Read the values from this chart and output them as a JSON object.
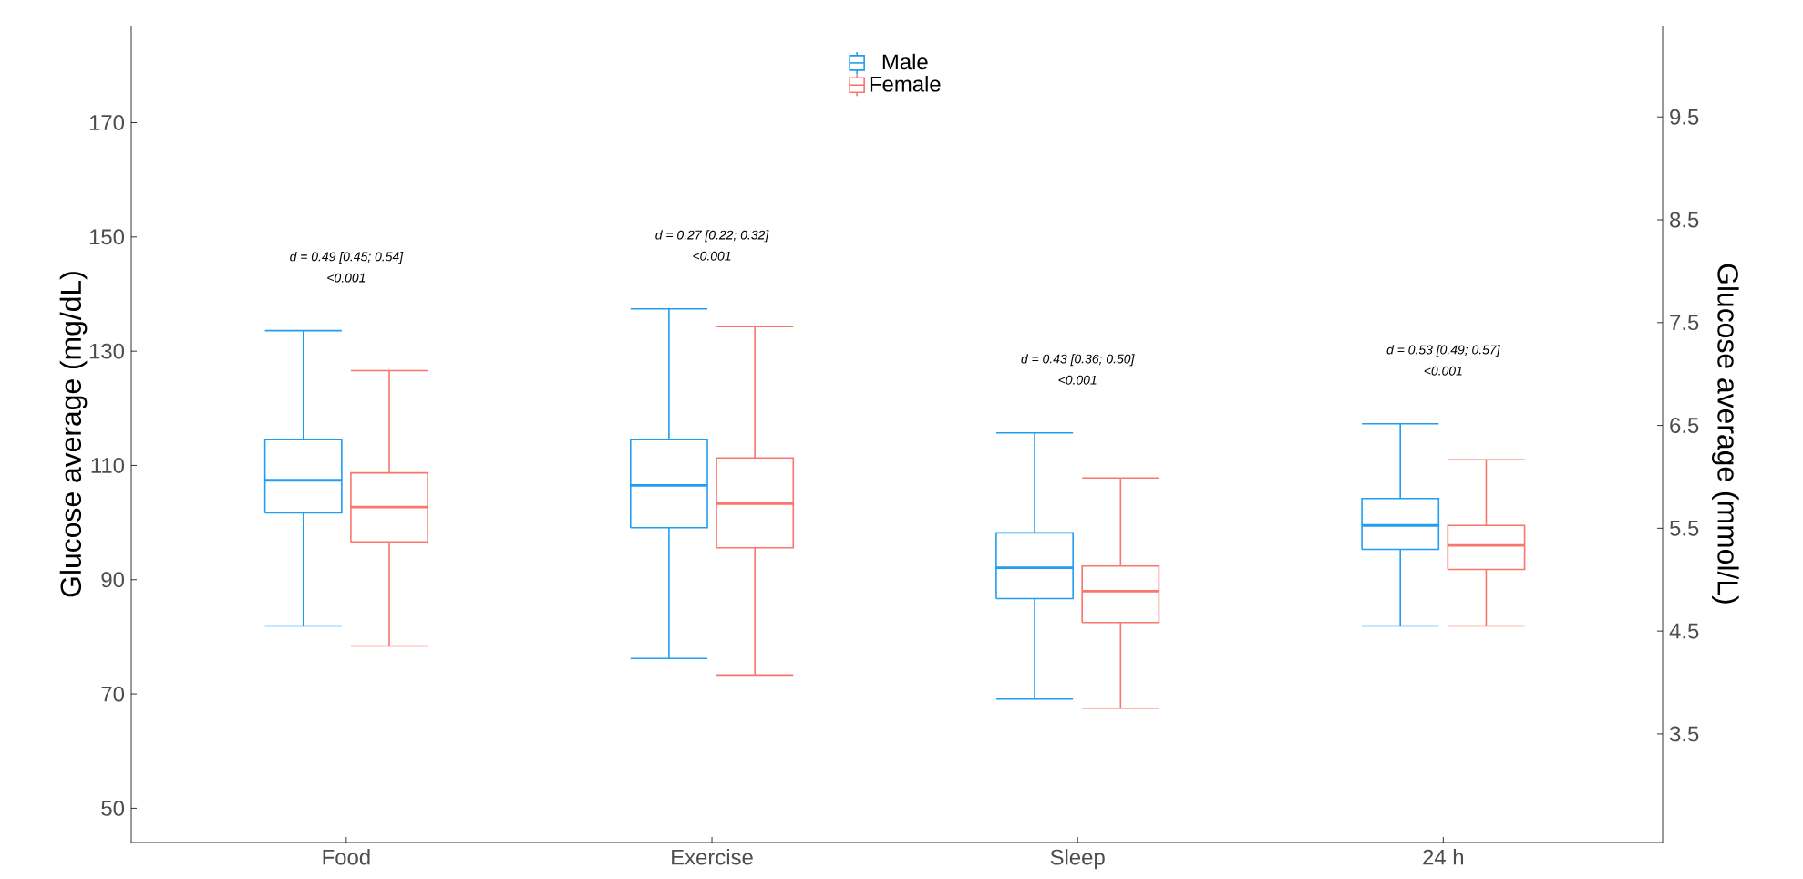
{
  "chart_data": {
    "type": "box",
    "categories": [
      "Food",
      "Exercise",
      "Sleep",
      "24 h"
    ],
    "ylabel": "Glucose average (mg/dL)",
    "y2label": "Glucose average (mmol/L)",
    "ylim": [
      44,
      187
    ],
    "yticks": [
      50,
      70,
      90,
      110,
      130,
      150,
      170
    ],
    "y2lim": [
      2.444,
      10.389
    ],
    "y2ticks": [
      3.5,
      4.5,
      5.5,
      6.5,
      7.5,
      8.5,
      9.5
    ],
    "legend": "top",
    "grid": false,
    "series": [
      {
        "name": "Male",
        "color": "#1f9ef2",
        "boxes": [
          {
            "low": 81.9,
            "q1": 101.7,
            "median": 107.4,
            "q3": 114.5,
            "high": 133.6
          },
          {
            "low": 76.2,
            "q1": 99.1,
            "median": 106.5,
            "q3": 114.5,
            "high": 137.4
          },
          {
            "low": 69.1,
            "q1": 86.7,
            "median": 92.1,
            "q3": 98.2,
            "high": 115.7
          },
          {
            "low": 81.9,
            "q1": 95.3,
            "median": 99.5,
            "q3": 104.2,
            "high": 117.3
          }
        ]
      },
      {
        "name": "Female",
        "color": "#f8766d",
        "boxes": [
          {
            "low": 78.4,
            "q1": 96.6,
            "median": 102.7,
            "q3": 108.7,
            "high": 126.6
          },
          {
            "low": 73.3,
            "q1": 95.6,
            "median": 103.3,
            "q3": 111.3,
            "high": 134.3
          },
          {
            "low": 67.5,
            "q1": 82.5,
            "median": 88.0,
            "q3": 92.4,
            "high": 107.8
          },
          {
            "low": 81.9,
            "q1": 91.8,
            "median": 96.0,
            "q3": 99.5,
            "high": 111.0
          }
        ]
      }
    ],
    "annotations": [
      "d = 0.49 [0.45; 0.54]",
      "<0.001",
      "d = 0.27 [0.22; 0.32]",
      "<0.001",
      "d = 0.43 [0.36; 0.50]",
      "<0.001",
      "d = 0.53 [0.49; 0.57]",
      "<0.001"
    ]
  }
}
